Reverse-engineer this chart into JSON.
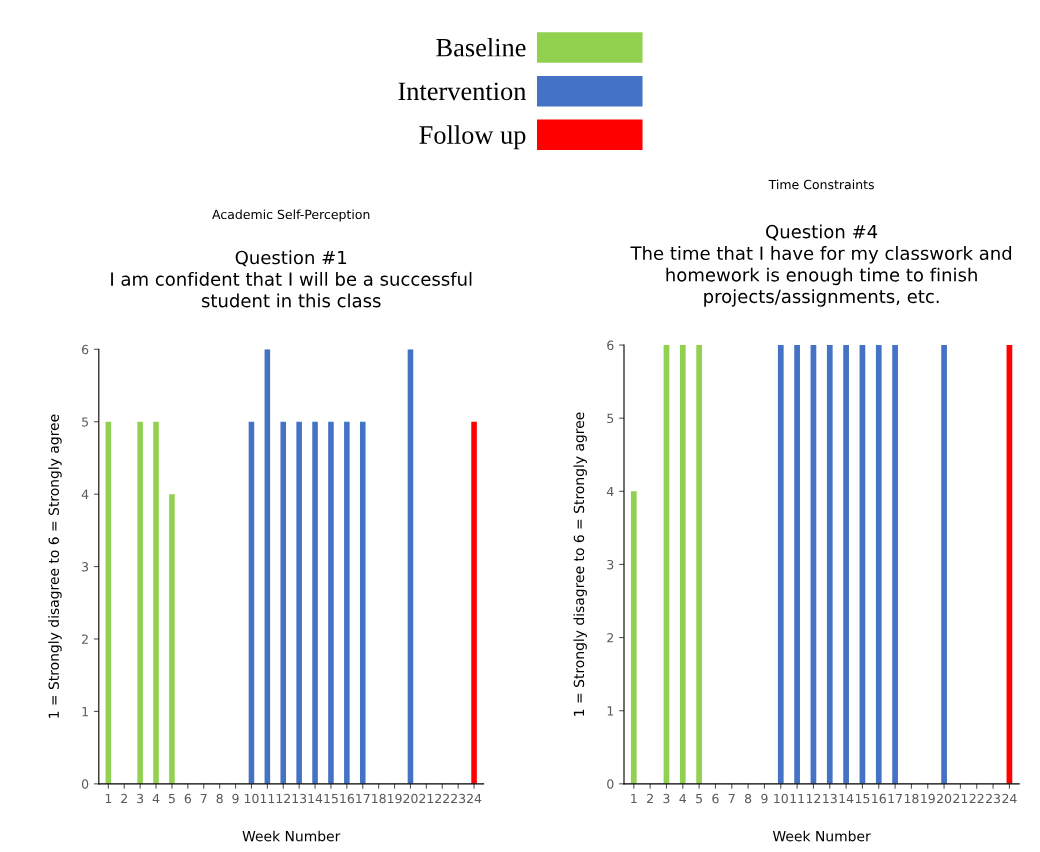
{
  "chart_data": [
    {
      "type": "bar",
      "title": "Academic Self-Perception",
      "subtitle": "Question #1\nI am confident that I will be a successful\nstudent in this class",
      "xlabel": "Week Number",
      "ylabel": "1 = Strongly disagree to 6 = Strongly agree",
      "categories": [
        "1",
        "2",
        "3",
        "4",
        "5",
        "6",
        "7",
        "8",
        "9",
        "10",
        "11",
        "12",
        "13",
        "14",
        "15",
        "16",
        "17",
        "18",
        "19",
        "20",
        "21",
        "22",
        "23",
        "24"
      ],
      "series": [
        {
          "name": "Baseline",
          "color": "#92d050",
          "values": [
            5,
            null,
            5,
            5,
            4,
            null,
            null,
            null,
            null,
            null,
            null,
            null,
            null,
            null,
            null,
            null,
            null,
            null,
            null,
            null,
            null,
            null,
            null,
            null
          ]
        },
        {
          "name": "Intervention",
          "color": "#4472c4",
          "values": [
            null,
            null,
            null,
            null,
            null,
            null,
            null,
            null,
            null,
            5,
            6,
            5,
            5,
            5,
            5,
            5,
            5,
            null,
            null,
            6,
            null,
            null,
            null,
            null
          ]
        },
        {
          "name": "Follow up",
          "color": "#ff0000",
          "values": [
            null,
            null,
            null,
            null,
            null,
            null,
            null,
            null,
            null,
            null,
            null,
            null,
            null,
            null,
            null,
            null,
            null,
            null,
            null,
            null,
            null,
            null,
            null,
            5
          ]
        }
      ],
      "ylim": [
        0,
        6
      ],
      "yticks": [
        0,
        1,
        2,
        3,
        4,
        5,
        6
      ],
      "grid": false,
      "legend": "top"
    },
    {
      "type": "bar",
      "title": "Time Constraints",
      "subtitle": "Question #4\nThe time that I have for my classwork and\nhomework is enough time to finish\nprojects/assignments, etc.",
      "xlabel": "Week Number",
      "ylabel": "1 = Strongly disagree to 6 = Strongly agree",
      "categories": [
        "1",
        "2",
        "3",
        "4",
        "5",
        "6",
        "7",
        "8",
        "9",
        "10",
        "11",
        "12",
        "13",
        "14",
        "15",
        "16",
        "17",
        "18",
        "19",
        "20",
        "21",
        "22",
        "23",
        "24"
      ],
      "series": [
        {
          "color": "#92d050",
          "values": [
            4,
            null,
            6,
            6,
            6,
            null,
            null,
            null,
            null,
            null,
            null,
            null,
            null,
            null,
            null,
            null,
            null,
            null,
            null,
            null,
            null,
            null,
            null,
            null
          ]
        },
        {
          "color": "#4472c4",
          "values": [
            null,
            null,
            null,
            null,
            null,
            null,
            null,
            null,
            null,
            6,
            6,
            6,
            6,
            6,
            6,
            6,
            6,
            null,
            null,
            6,
            null,
            null,
            null,
            null
          ]
        },
        {
          "color": "#ff0000",
          "values": [
            null,
            null,
            null,
            null,
            null,
            null,
            null,
            null,
            null,
            null,
            null,
            null,
            null,
            null,
            null,
            null,
            null,
            null,
            null,
            null,
            null,
            null,
            null,
            6
          ]
        }
      ],
      "ylim": [
        0,
        6
      ],
      "yticks": [
        0,
        1,
        2,
        3,
        4,
        5,
        6
      ],
      "grid": false
    }
  ]
}
